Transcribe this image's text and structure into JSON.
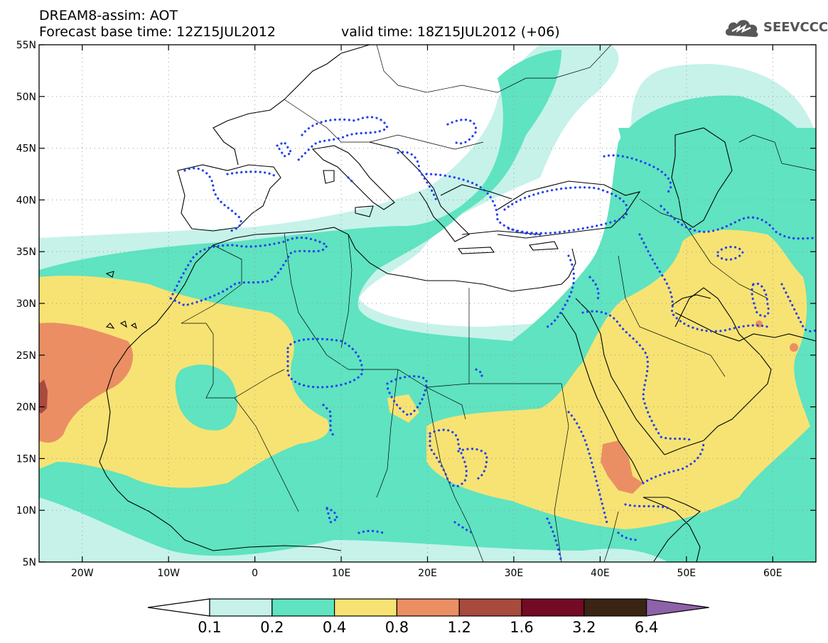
{
  "header": {
    "title": "DREAM8-assim: AOT",
    "base_time": "Forecast base time: 12Z15JUL2012",
    "valid_time": "valid time: 18Z15JUL2012 (+06)"
  },
  "logo": {
    "text": "SEEVCCC",
    "icon": "cloud-icon"
  },
  "map": {
    "lat_labels": [
      "55N",
      "50N",
      "45N",
      "40N",
      "35N",
      "30N",
      "25N",
      "20N",
      "15N",
      "10N",
      "5N"
    ],
    "lon_labels": [
      "20W",
      "10W",
      "0",
      "10E",
      "20E",
      "30E",
      "40E",
      "50E",
      "60E"
    ],
    "lat_values": [
      55,
      50,
      45,
      40,
      35,
      30,
      25,
      20,
      15,
      10,
      5
    ],
    "lon_values": [
      -20,
      -10,
      0,
      10,
      20,
      30,
      40,
      50,
      60
    ],
    "extent": {
      "lon_min": -25,
      "lon_max": 65,
      "lat_min": 5,
      "lat_max": 55
    }
  },
  "legend": {
    "ticks": [
      "0.1",
      "0.2",
      "0.4",
      "0.8",
      "1.2",
      "1.6",
      "3.2",
      "6.4"
    ],
    "colors": [
      "#c6f2ea",
      "#5fe3c0",
      "#f7e373",
      "#ec8e64",
      "#a84a3e",
      "#740a25",
      "#3a2414"
    ],
    "under_color": "#ffffff",
    "over_color": "#8e62a8"
  },
  "colors": {
    "aot_0_1": "#c6f2ea",
    "aot_0_2": "#5fe3c0",
    "aot_0_4": "#f7e373",
    "aot_0_8": "#ec8e64",
    "aot_1_2": "#a84a3e",
    "contour": "#2340ee"
  }
}
